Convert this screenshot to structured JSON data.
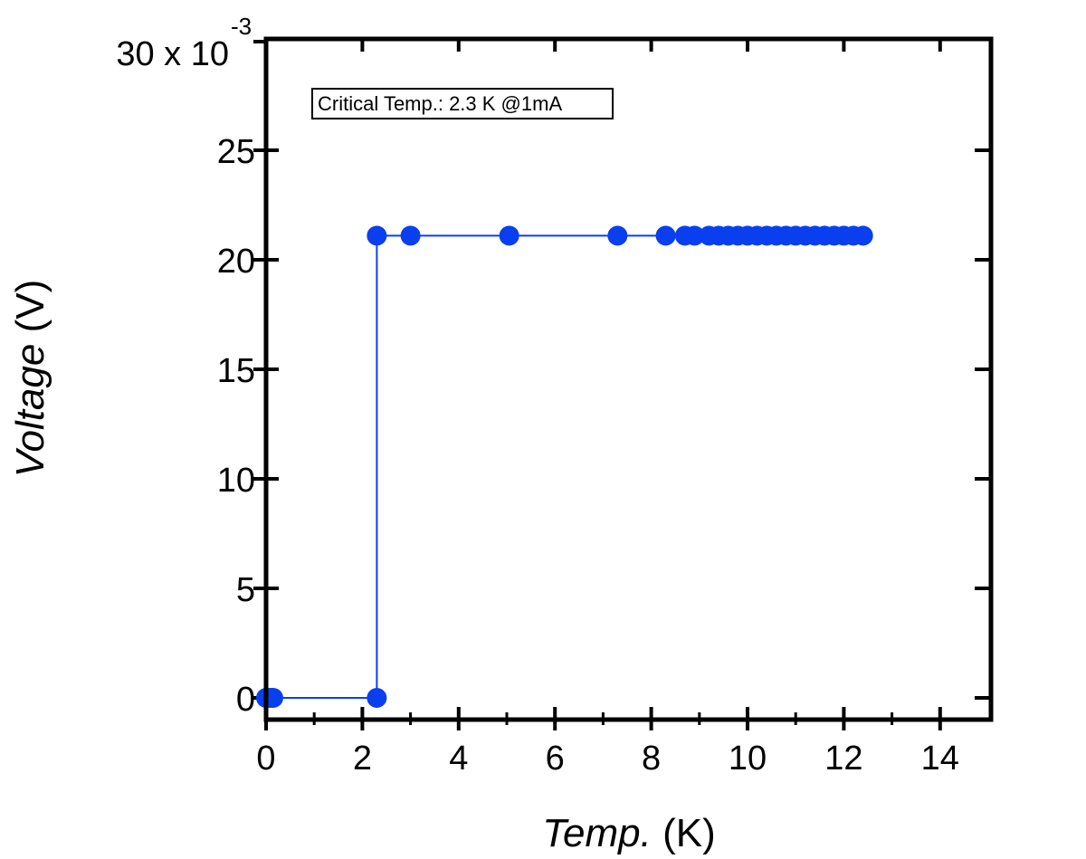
{
  "chart_data": {
    "type": "scatter",
    "annotation": "Critical Temp.: 2.3 K @1mA",
    "xlabel_italic": "Temp.",
    "xlabel_unit": " (K)",
    "ylabel_italic": "Voltage",
    "ylabel_unit": " (V)",
    "y_top_label": "30 x 10",
    "y_exponent": "-3",
    "xlim": [
      0,
      15
    ],
    "ylim": [
      -1,
      30
    ],
    "x_ticks": [
      0,
      2,
      4,
      6,
      8,
      10,
      12,
      14
    ],
    "y_ticks": [
      0,
      5,
      10,
      15,
      20,
      25
    ],
    "y_tick_labels": [
      "0",
      "5",
      "10",
      "15",
      "20",
      "25"
    ],
    "grid": false,
    "series": [
      {
        "color": "#0a3ff0",
        "line": "step-connected",
        "x": [
          0.0,
          0.05,
          0.1,
          0.15,
          2.3,
          2.3,
          3.0,
          5.05,
          7.3,
          8.3,
          8.7,
          8.9,
          9.2,
          9.4,
          9.6,
          9.8,
          10.0,
          10.2,
          10.4,
          10.6,
          10.8,
          11.0,
          11.2,
          11.4,
          11.6,
          11.8,
          12.0,
          12.2,
          12.4
        ],
        "y": [
          0.0,
          0.0,
          0.0,
          0.0,
          0.0,
          21.1,
          21.1,
          21.1,
          21.1,
          21.1,
          21.1,
          21.1,
          21.1,
          21.1,
          21.1,
          21.1,
          21.1,
          21.1,
          21.1,
          21.1,
          21.1,
          21.1,
          21.1,
          21.1,
          21.1,
          21.1,
          21.1,
          21.1,
          21.1
        ]
      }
    ]
  }
}
